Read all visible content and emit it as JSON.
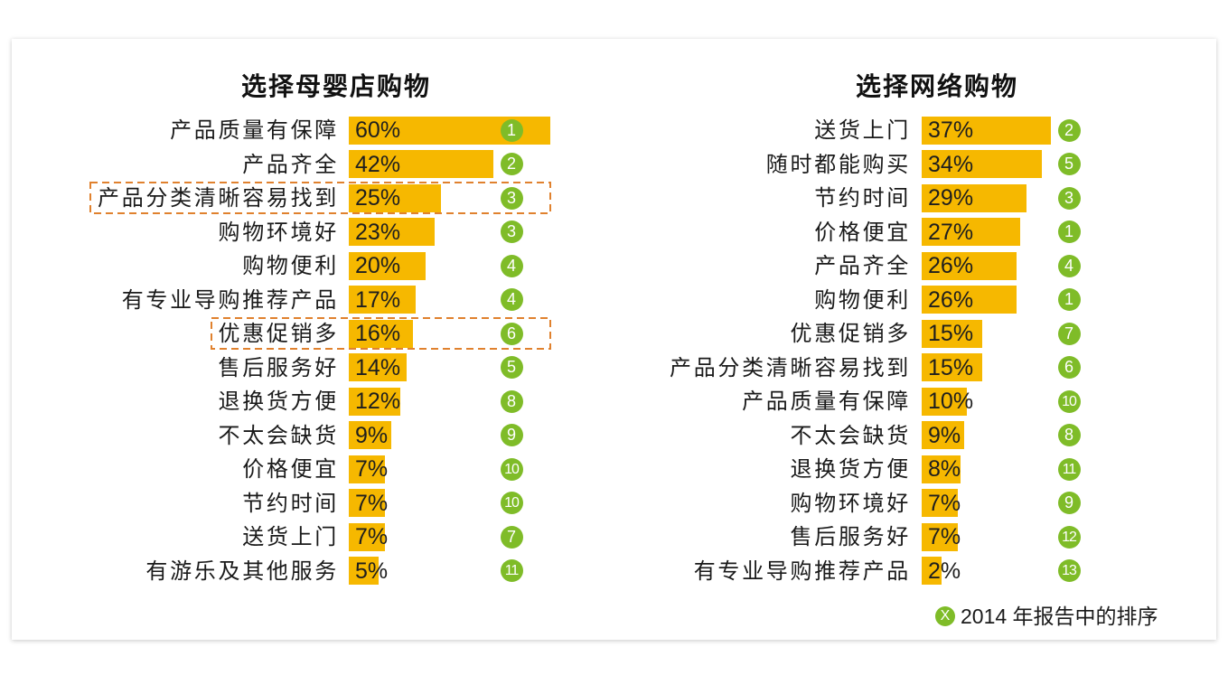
{
  "colors": {
    "bar": "#F6B800",
    "rank_badge": "#7FBC28",
    "highlight_border": "#E0812E"
  },
  "chart_data": [
    {
      "type": "bar",
      "orientation": "horizontal",
      "grid": false,
      "title": "选择母婴店购物",
      "unit": "%",
      "categories": [
        "产品质量有保障",
        "产品齐全",
        "产品分类清晰容易找到",
        "购物环境好",
        "购物便利",
        "有专业导购推荐产品",
        "优惠促销多",
        "售后服务好",
        "退换货方便",
        "不太会缺货",
        "价格便宜",
        "节约时间",
        "送货上门",
        "有游乐及其他服务"
      ],
      "values": [
        60,
        42,
        25,
        23,
        20,
        17,
        16,
        14,
        12,
        9,
        7,
        7,
        7,
        5
      ],
      "ranks_2014": [
        1,
        2,
        3,
        3,
        4,
        4,
        6,
        5,
        8,
        9,
        10,
        10,
        7,
        11
      ],
      "highlighted_indices": [
        2,
        6
      ]
    },
    {
      "type": "bar",
      "orientation": "horizontal",
      "grid": false,
      "title": "选择网络购物",
      "unit": "%",
      "categories": [
        "送货上门",
        "随时都能购买",
        "节约时间",
        "价格便宜",
        "产品齐全",
        "购物便利",
        "优惠促销多",
        "产品分类清晰容易找到",
        "产品质量有保障",
        "不太会缺货",
        "退换货方便",
        "购物环境好",
        "售后服务好",
        "有专业导购推荐产品"
      ],
      "values": [
        37,
        34,
        29,
        27,
        26,
        26,
        15,
        15,
        10,
        9,
        8,
        7,
        7,
        2
      ],
      "ranks_2014": [
        2,
        5,
        3,
        1,
        4,
        1,
        7,
        6,
        10,
        8,
        11,
        9,
        12,
        13
      ],
      "highlighted_indices": []
    }
  ],
  "legend": {
    "marker": "X",
    "text": "2014 年报告中的排序",
    "placement": "bottom-right"
  }
}
